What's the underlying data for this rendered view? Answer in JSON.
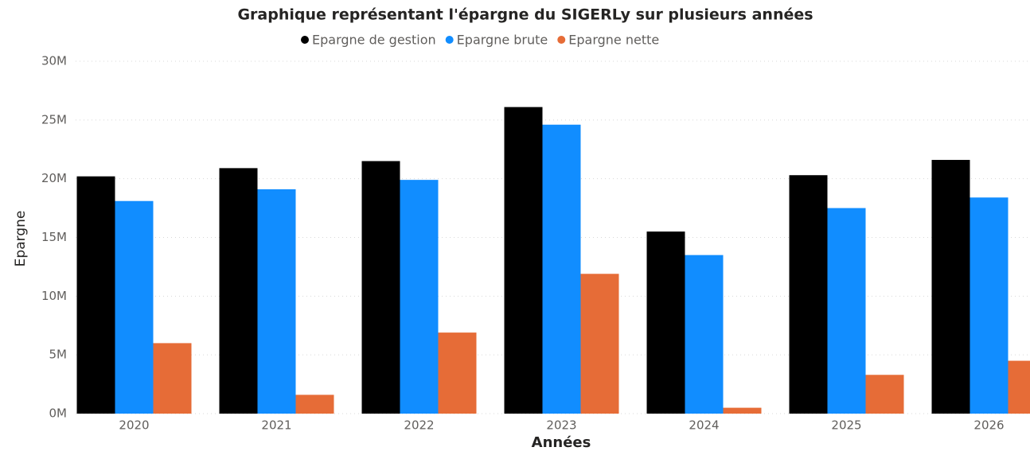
{
  "chart_data": {
    "type": "bar",
    "title": "Graphique représentant l'épargne du SIGERLy sur plusieurs années",
    "x_label": "Années",
    "y_label": "Epargne",
    "categories": [
      "2020",
      "2021",
      "2022",
      "2023",
      "2024",
      "2025",
      "2026"
    ],
    "series": [
      {
        "name": "Epargne de gestion",
        "color": "#000000",
        "values": [
          20200000,
          20900000,
          21500000,
          26100000,
          15500000,
          20300000,
          21600000
        ]
      },
      {
        "name": "Epargne brute",
        "color": "#118dff",
        "values": [
          18100000,
          19100000,
          19900000,
          24600000,
          13500000,
          17500000,
          18400000
        ]
      },
      {
        "name": "Epargne nette",
        "color": "#e66c37",
        "values": [
          6000000,
          1600000,
          6900000,
          11900000,
          500000,
          3300000,
          4500000
        ]
      }
    ],
    "ylim": [
      0,
      30000000
    ],
    "yticks": [
      {
        "value": 0,
        "label": "0M"
      },
      {
        "value": 5000000,
        "label": "5M"
      },
      {
        "value": 10000000,
        "label": "10M"
      },
      {
        "value": 15000000,
        "label": "15M"
      },
      {
        "value": 20000000,
        "label": "20M"
      },
      {
        "value": 25000000,
        "label": "25M"
      },
      {
        "value": 30000000,
        "label": "30M"
      }
    ],
    "grid": true
  }
}
